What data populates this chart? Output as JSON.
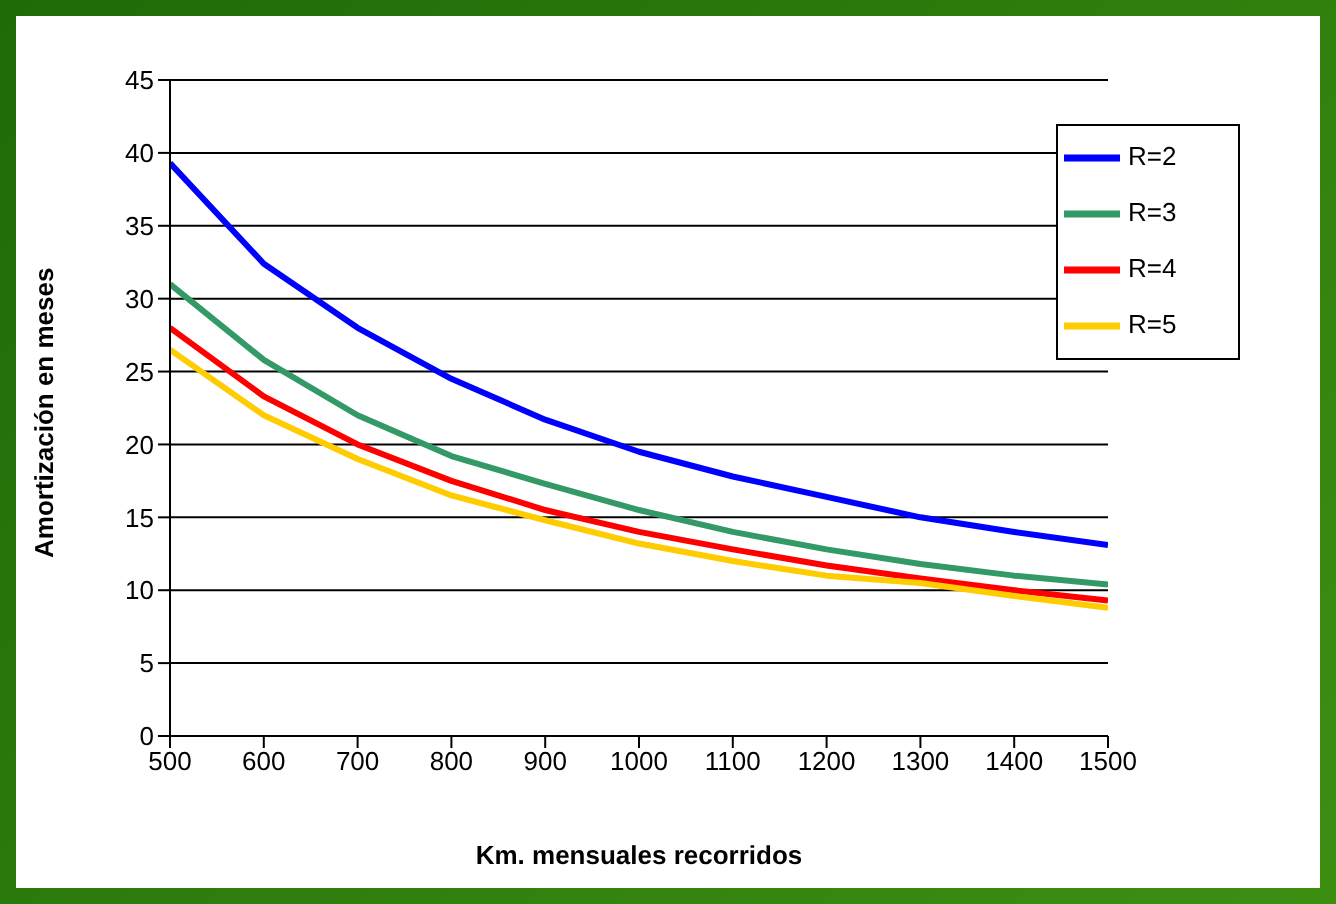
{
  "chart_data": {
    "type": "line",
    "xlabel": "Km. mensuales recorridos",
    "ylabel": "Amortización en meses",
    "x": [
      500,
      600,
      700,
      800,
      900,
      1000,
      1100,
      1200,
      1300,
      1400,
      1500
    ],
    "series": [
      {
        "name": "R=2",
        "color": "#0000ff",
        "values": [
          39.3,
          32.4,
          28,
          24.5,
          21.7,
          19.5,
          17.8,
          16.4,
          15,
          14,
          13.1
        ]
      },
      {
        "name": "R=3",
        "color": "#339966",
        "values": [
          31,
          25.8,
          22,
          19.2,
          17.3,
          15.5,
          14,
          12.8,
          11.8,
          11,
          10.4
        ]
      },
      {
        "name": "R=4",
        "color": "#ff0000",
        "values": [
          28,
          23.3,
          20,
          17.5,
          15.5,
          14,
          12.8,
          11.7,
          10.8,
          10,
          9.3
        ]
      },
      {
        "name": "R=5",
        "color": "#ffcc00",
        "values": [
          26.5,
          22,
          19,
          16.5,
          14.8,
          13.2,
          12,
          11,
          10.5,
          9.6,
          8.8
        ]
      }
    ],
    "xlim": [
      500,
      1500
    ],
    "xticks": [
      500,
      600,
      700,
      800,
      900,
      1000,
      1100,
      1200,
      1300,
      1400,
      1500
    ],
    "ylim": [
      0,
      45
    ],
    "yticks": [
      0,
      5,
      10,
      15,
      20,
      25,
      30,
      35,
      40,
      45
    ],
    "grid": "y",
    "legend": "top right",
    "marker": "none",
    "line_style": "solid"
  }
}
